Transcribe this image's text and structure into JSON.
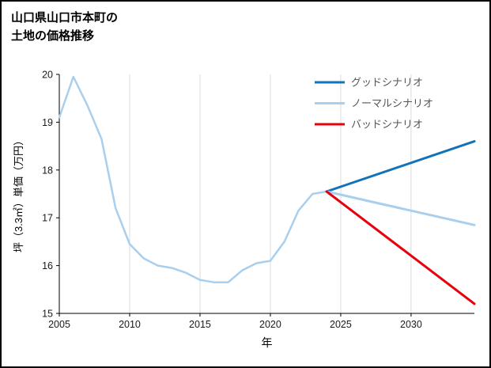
{
  "title": {
    "line1": "山口県山口市本町の",
    "line2": "土地の価格推移"
  },
  "chart_data": {
    "type": "line",
    "title": "山口県山口市本町の土地の価格推移",
    "xlabel": "年",
    "ylabel": "坪（3.3㎡）単価（万円）",
    "xlim": [
      2005,
      2034.5
    ],
    "ylim": [
      15,
      20
    ],
    "xticks": [
      2005,
      2010,
      2015,
      2020,
      2025,
      2030
    ],
    "yticks": [
      15,
      16,
      17,
      18,
      19,
      20
    ],
    "grid": "vertical-only",
    "grid_color": "#dcdcdc",
    "legend_position": "upper-right",
    "series": [
      {
        "name": "history",
        "color": "#a8cfee",
        "width": 2.5,
        "x": [
          2005,
          2006,
          2007,
          2008,
          2009,
          2010,
          2011,
          2012,
          2013,
          2014,
          2015,
          2016,
          2017,
          2018,
          2019,
          2020,
          2021,
          2022,
          2023,
          2024
        ],
        "y": [
          19.1,
          19.95,
          19.35,
          18.65,
          17.2,
          16.45,
          16.15,
          16.0,
          15.95,
          15.85,
          15.7,
          15.65,
          15.65,
          15.9,
          16.05,
          16.1,
          16.5,
          17.15,
          17.5,
          17.55
        ]
      },
      {
        "name": "グッドシナリオ",
        "color": "#1273b8",
        "width": 3,
        "x": [
          2024,
          2034.5
        ],
        "y": [
          17.55,
          18.6
        ]
      },
      {
        "name": "ノーマルシナリオ",
        "color": "#a8cfee",
        "width": 3,
        "x": [
          2024,
          2027,
          2034.5
        ],
        "y": [
          17.55,
          17.35,
          16.85
        ]
      },
      {
        "name": "バッドシナリオ",
        "color": "#e8000d",
        "width": 3,
        "x": [
          2024,
          2034.5
        ],
        "y": [
          17.55,
          15.2
        ]
      }
    ],
    "legend": [
      {
        "label": "グッドシナリオ",
        "color": "#1273b8"
      },
      {
        "label": "ノーマルシナリオ",
        "color": "#a8cfee"
      },
      {
        "label": "バッドシナリオ",
        "color": "#e8000d"
      }
    ]
  }
}
